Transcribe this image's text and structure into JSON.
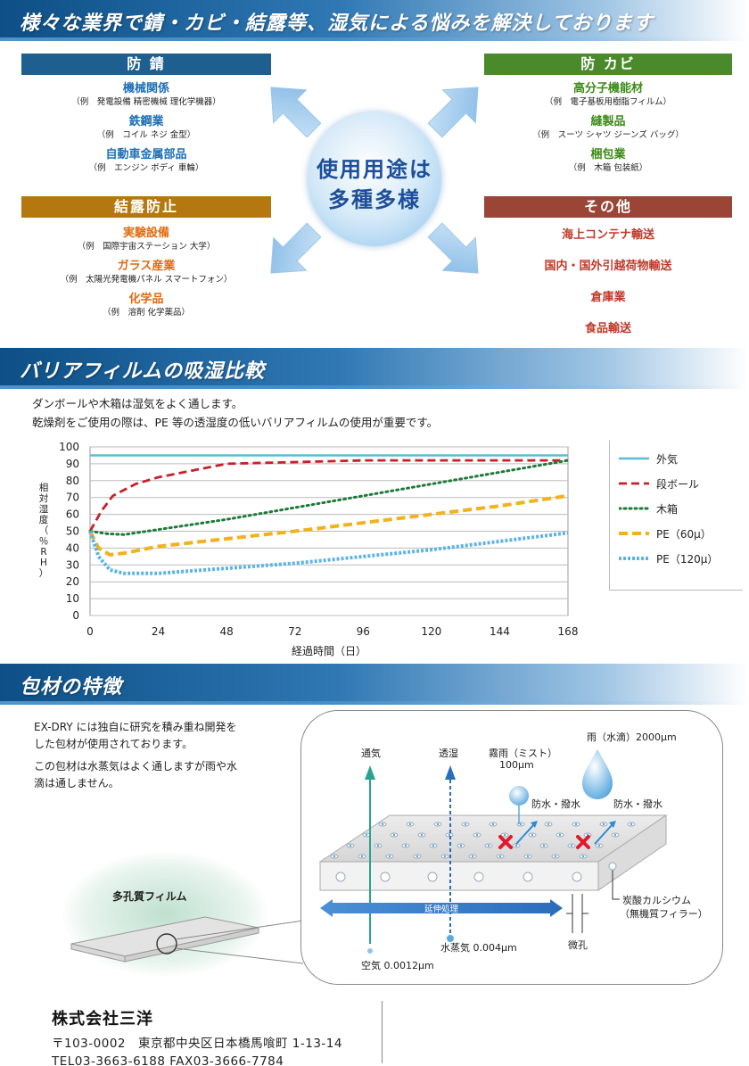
{
  "section1": {
    "banner": "様々な業界で錆・カビ・結露等、湿気による悩みを解決しております",
    "hub": [
      "使用用途は",
      "多種多様"
    ],
    "categories": {
      "rust": {
        "label": "防 錆",
        "color": "#1d5f8e",
        "items": [
          {
            "heading": "機械関係",
            "example": "（例　発電設備 精密機械 理化学機器）"
          },
          {
            "heading": "鉄鋼業",
            "example": "（例　コイル ネジ 金型）"
          },
          {
            "heading": "自動車金属部品",
            "example": "（例　エンジン ボディ 車輪）"
          }
        ]
      },
      "mold": {
        "label": "防 カビ",
        "color": "#4b8a2a",
        "items": [
          {
            "heading": "高分子機能材",
            "example": "（例　電子基板用樹脂フィルム）"
          },
          {
            "heading": "縫製品",
            "example": "（例　スーツ シャツ ジーンズ バッグ）"
          },
          {
            "heading": "梱包業",
            "example": "（例　木箱 包装紙）"
          }
        ]
      },
      "condensation": {
        "label": "結露防止",
        "color": "#b57810",
        "items": [
          {
            "heading": "実験設備",
            "example": "（例　国際宇宙ステーション 大学）"
          },
          {
            "heading": "ガラス産業",
            "example": "（例　太陽光発電機パネル スマートフォン）"
          },
          {
            "heading": "化学品",
            "example": "（例　溶剤 化学薬品）"
          }
        ]
      },
      "other": {
        "label": "その他",
        "color": "#9a4535",
        "items": [
          "海上コンテナ輸送",
          "国内・国外引越荷物輸送",
          "倉庫業",
          "食品輸送"
        ]
      }
    }
  },
  "section2": {
    "banner": "バリアフィルムの吸湿比較",
    "lines": [
      "ダンボールや木箱は湿気をよく通します。",
      "乾燥剤をご使用の際は、PE 等の透湿度の低いバリアフィルムの使用が重要です。"
    ]
  },
  "chart_data": {
    "type": "line",
    "xlabel": "経過時間（日）",
    "ylabel": "相対湿度（％RH）",
    "xlim": [
      0,
      168
    ],
    "ylim": [
      0,
      100
    ],
    "xticks": [
      0,
      24,
      48,
      72,
      96,
      120,
      144,
      168
    ],
    "yticks": [
      0,
      10,
      20,
      30,
      40,
      50,
      60,
      70,
      80,
      90,
      100
    ],
    "grid": true,
    "legend": "right",
    "series": [
      {
        "name": "外気",
        "color": "#5bbdd6",
        "style": "solid",
        "x": [
          0,
          168
        ],
        "y": [
          95,
          95
        ]
      },
      {
        "name": "段ボール",
        "color": "#c8202b",
        "style": "dash",
        "x": [
          0,
          4,
          8,
          16,
          24,
          36,
          48,
          72,
          96,
          120,
          144,
          168
        ],
        "y": [
          50,
          62,
          71,
          78,
          82,
          86,
          90,
          91,
          92,
          92,
          92,
          92
        ]
      },
      {
        "name": "木箱",
        "color": "#1f7a3a",
        "style": "dot",
        "x": [
          0,
          6,
          12,
          24,
          48,
          72,
          96,
          120,
          144,
          168
        ],
        "y": [
          50,
          48.5,
          48,
          51,
          57,
          64,
          71,
          78,
          85,
          92
        ]
      },
      {
        "name": "PE（60μ）",
        "color": "#f2b21c",
        "style": "dashthick",
        "x": [
          0,
          3,
          7,
          12,
          24,
          48,
          72,
          96,
          120,
          144,
          168
        ],
        "y": [
          50,
          40,
          36,
          37,
          41,
          45.5,
          50,
          55,
          60,
          65,
          71
        ]
      },
      {
        "name": "PE（120μ）",
        "color": "#5cb4e6",
        "style": "dotthick",
        "x": [
          0,
          3,
          7,
          12,
          24,
          48,
          72,
          96,
          120,
          144,
          168
        ],
        "y": [
          50,
          35,
          27,
          25,
          25,
          28,
          31,
          35,
          39,
          44,
          49
        ]
      }
    ]
  },
  "section3": {
    "banner": "包材の特徴",
    "lines": [
      "EX-DRY には独自に研究を積み重ね開発を",
      "した包材が使用されております。",
      "この包材は水蒸気はよく通しますが雨や水",
      "滴は通しません。"
    ],
    "film_label": "多孔質フィルム",
    "diagram": {
      "vent": "通気",
      "permeate": "透湿",
      "mist": [
        "霧雨（ミスト）",
        "100μm"
      ],
      "rain": "雨（水滴）2000μm",
      "waterproof": "防水・撥水",
      "stretch": "延伸処理",
      "vapor": "水蒸気 0.004μm",
      "air": "空気 0.0012μm",
      "pore": "微孔",
      "filler": [
        "炭酸カルシウム",
        "（無機質フィラー）"
      ]
    }
  },
  "company": {
    "name": "株式会社三洋",
    "address": "〒103-0002　東京都中央区日本橋馬喰町 1-13-14",
    "contact": "TEL03-3663-6188  FAX03-3666-7784"
  }
}
